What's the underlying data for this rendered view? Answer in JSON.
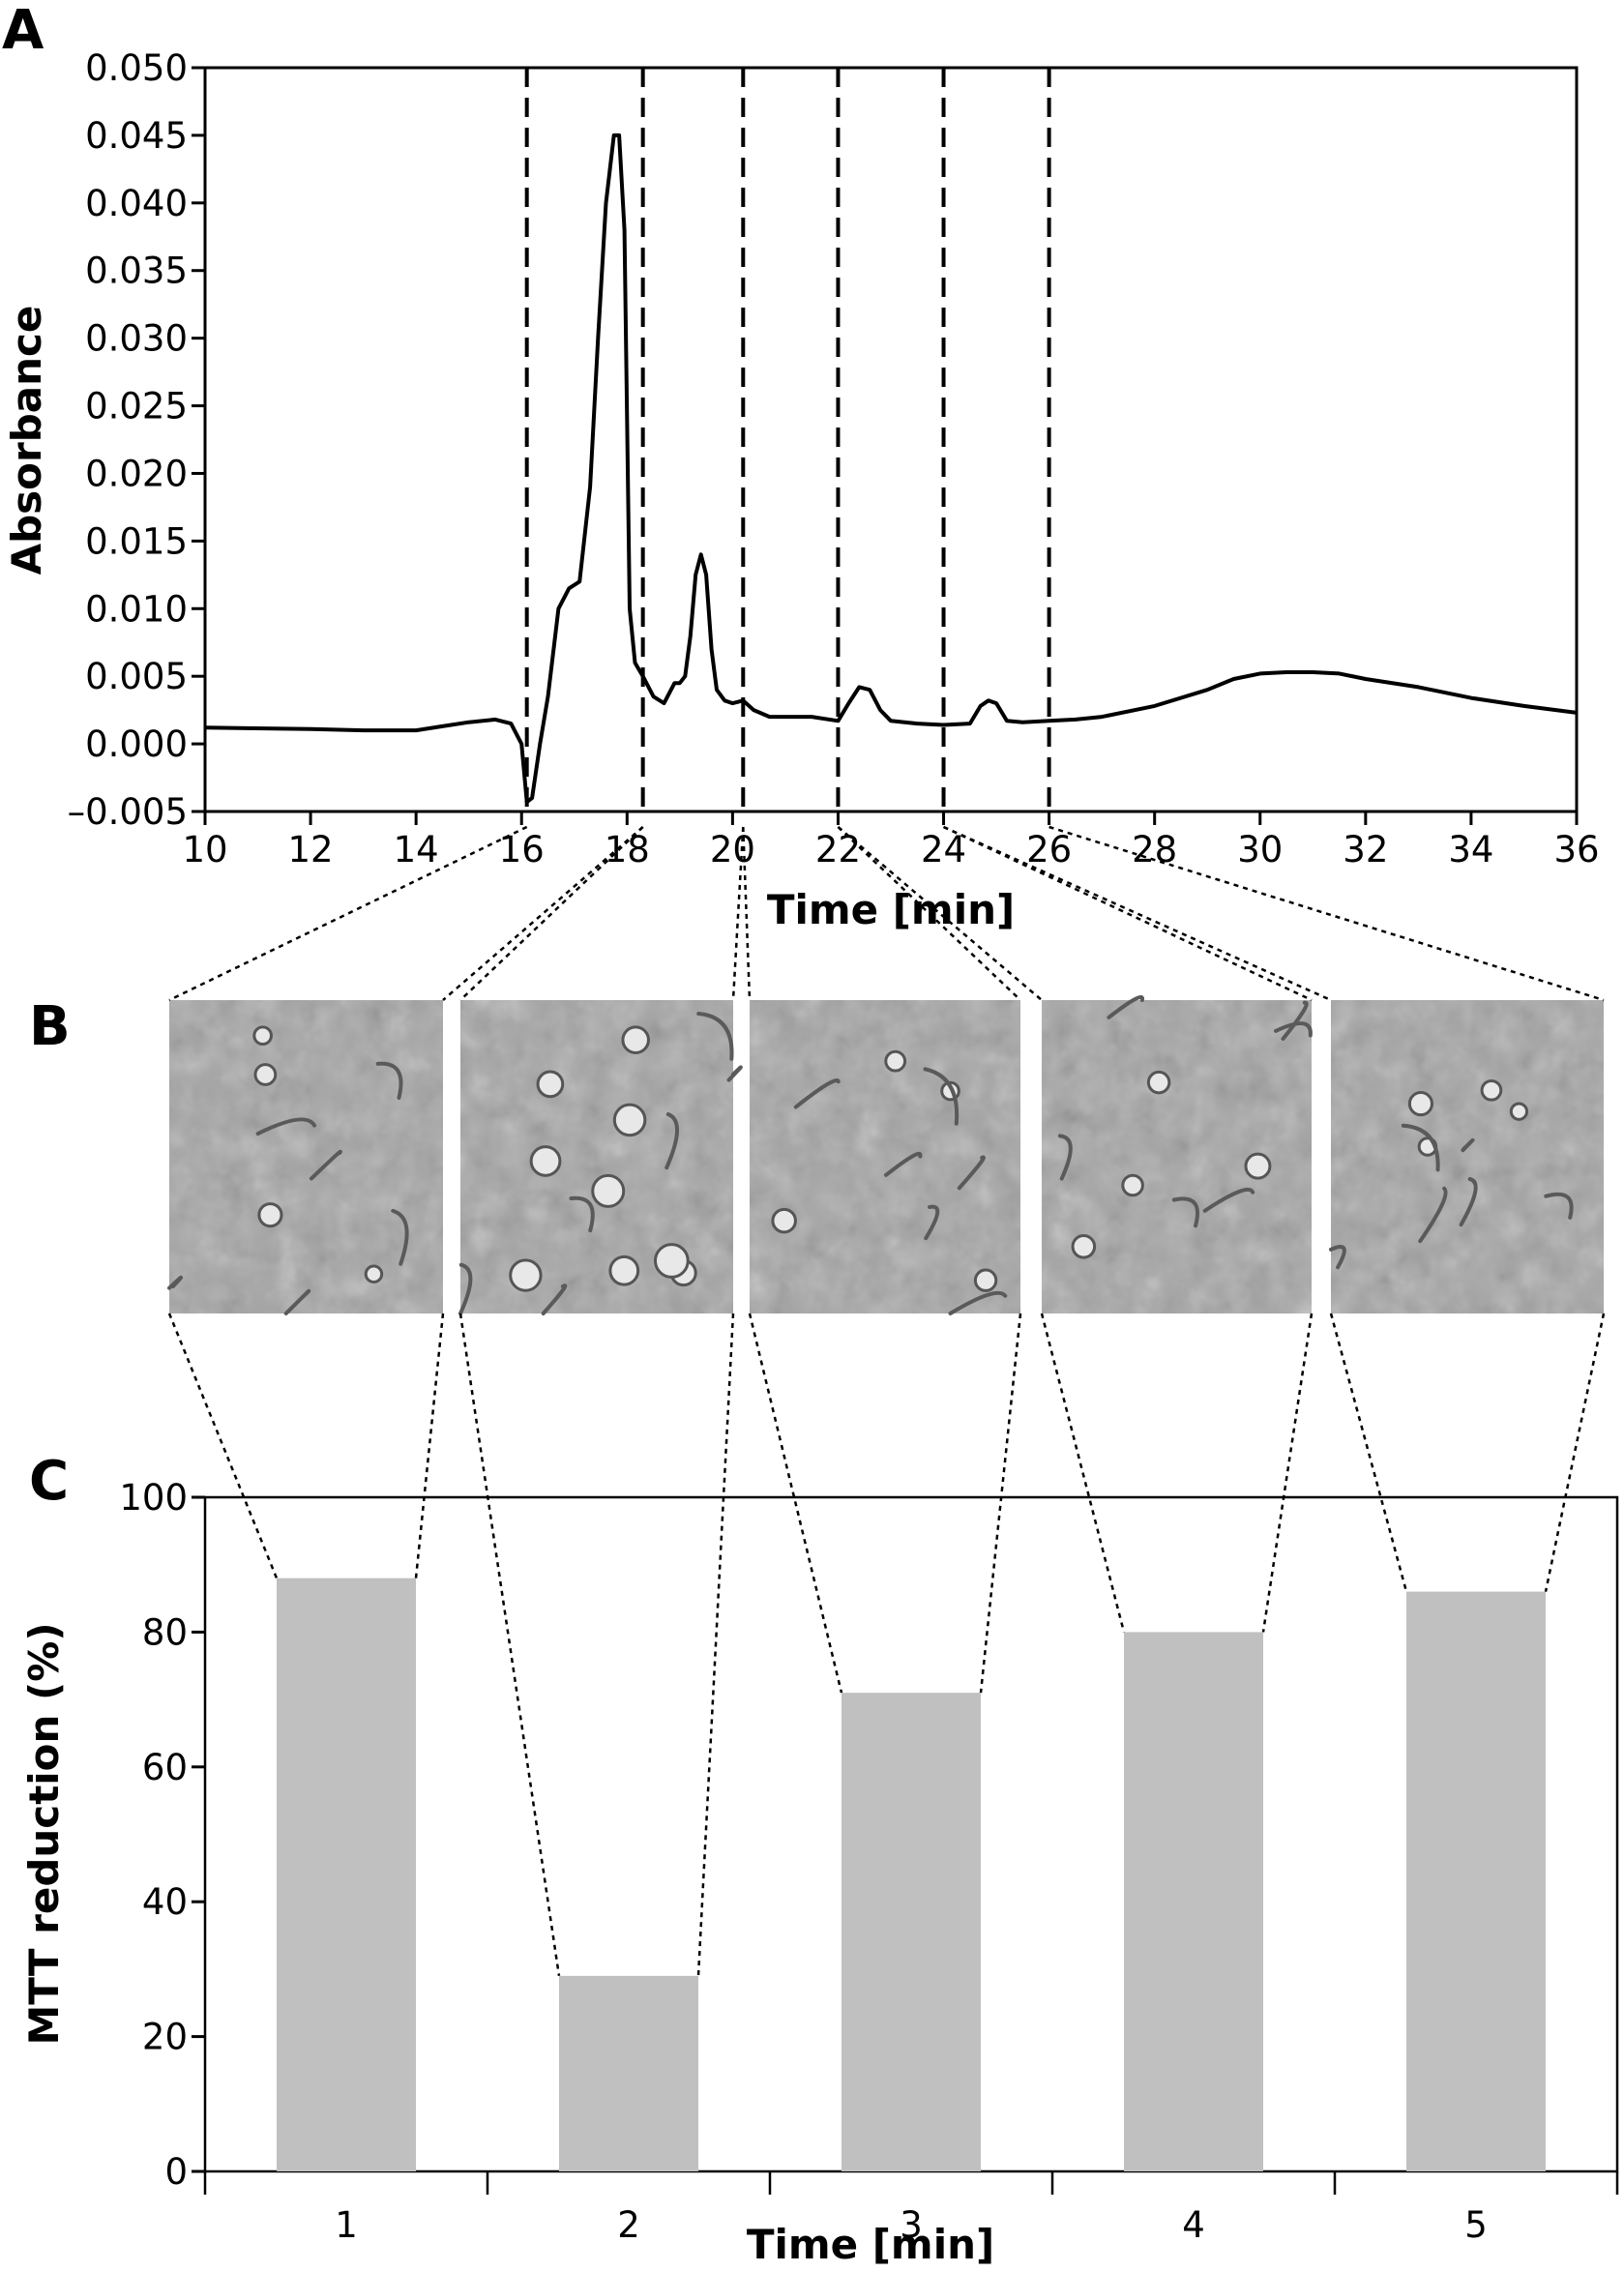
{
  "figure": {
    "panel_letters": [
      "A",
      "B",
      "C"
    ]
  },
  "chart_data": [
    {
      "panel": "A",
      "type": "line",
      "xlabel": "Time [min]",
      "ylabel": "Absorbance",
      "xlim": [
        10,
        36
      ],
      "ylim": [
        -0.005,
        0.05
      ],
      "xticks": [
        10,
        12,
        14,
        16,
        18,
        20,
        22,
        24,
        26,
        28,
        30,
        32,
        34,
        36
      ],
      "xtick_labels": [
        "10",
        "12",
        "14",
        "16",
        "18",
        "20",
        "22",
        "24",
        "26",
        "28",
        "30",
        "32",
        "34",
        "36"
      ],
      "yticks": [
        -0.005,
        0,
        0.005,
        0.01,
        0.015,
        0.02,
        0.025,
        0.03,
        0.035,
        0.04,
        0.045,
        0.05
      ],
      "ytick_labels": [
        "–0.005",
        "0.000",
        "0.005",
        "0.010",
        "0.015",
        "0.020",
        "0.025",
        "0.030",
        "0.035",
        "0.040",
        "0.045",
        "0.050"
      ],
      "fraction_boundaries": [
        16.1,
        18.3,
        20.2,
        22.0,
        24.0,
        26.0
      ],
      "series": [
        {
          "x": [
            10,
            12,
            13,
            14,
            14.5,
            15,
            15.5,
            15.8,
            16.0,
            16.1,
            16.2,
            16.35,
            16.5,
            16.7,
            16.9,
            17.1,
            17.3,
            17.45,
            17.6,
            17.75,
            17.85,
            17.95,
            18.05,
            18.15,
            18.3,
            18.5,
            18.7,
            18.9,
            19.0,
            19.1,
            19.2,
            19.3,
            19.4,
            19.5,
            19.6,
            19.7,
            19.85,
            20.0,
            20.2,
            20.4,
            20.7,
            21.0,
            21.5,
            22.0,
            22.2,
            22.4,
            22.6,
            22.8,
            23.0,
            23.5,
            24.0,
            24.5,
            24.7,
            24.85,
            25.0,
            25.2,
            25.5,
            26.0,
            26.5,
            27.0,
            28.0,
            29.0,
            29.5,
            30.0,
            30.5,
            31.0,
            31.5,
            32.0,
            33.0,
            34.0,
            35.0,
            36.0
          ],
          "y": [
            0.0012,
            0.0011,
            0.001,
            0.001,
            0.0013,
            0.0016,
            0.0018,
            0.0015,
            0.0,
            -0.0043,
            -0.004,
            0.0,
            0.0035,
            0.01,
            0.0115,
            0.012,
            0.019,
            0.03,
            0.04,
            0.045,
            0.045,
            0.038,
            0.01,
            0.006,
            0.005,
            0.0035,
            0.003,
            0.0045,
            0.0045,
            0.005,
            0.008,
            0.0125,
            0.014,
            0.0125,
            0.007,
            0.004,
            0.0032,
            0.003,
            0.0032,
            0.0025,
            0.002,
            0.002,
            0.002,
            0.0017,
            0.003,
            0.0042,
            0.004,
            0.0025,
            0.0017,
            0.0015,
            0.0014,
            0.0015,
            0.0028,
            0.0032,
            0.003,
            0.0017,
            0.0016,
            0.0017,
            0.0018,
            0.002,
            0.0028,
            0.004,
            0.0048,
            0.0052,
            0.0053,
            0.0053,
            0.0052,
            0.0048,
            0.0042,
            0.0034,
            0.0028,
            0.0023
          ]
        }
      ]
    },
    {
      "panel": "C",
      "type": "bar",
      "xlabel": "Time [min]",
      "ylabel": "MTT reduction (%)",
      "categories": [
        "1",
        "2",
        "3",
        "4",
        "5"
      ],
      "values": [
        88,
        29,
        71,
        80,
        86
      ],
      "ylim": [
        0,
        100
      ],
      "yticks": [
        0,
        20,
        40,
        60,
        80,
        100
      ],
      "ytick_labels": [
        "0",
        "20",
        "40",
        "60",
        "80",
        "100"
      ],
      "bar_color": "#c0c0c0"
    }
  ],
  "micrographs": {
    "count": 5,
    "tone": "#a4a4a4"
  }
}
